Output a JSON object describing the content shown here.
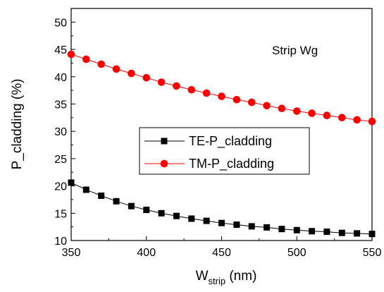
{
  "chart_data": {
    "type": "line",
    "xlabel_main": "W",
    "xlabel_sub": "strip",
    "xlabel_unit": " (nm)",
    "ylabel": "P_cladding (%)",
    "xlim": [
      350,
      550
    ],
    "ylim": [
      10,
      52.5
    ],
    "xticks": [
      350,
      400,
      450,
      500,
      550
    ],
    "yticks": [
      10,
      15,
      20,
      25,
      30,
      35,
      40,
      45,
      50
    ],
    "grid": false,
    "legend_position": "center",
    "annotation": "Strip Wg",
    "x": [
      350,
      360,
      370,
      380,
      390,
      400,
      410,
      420,
      430,
      440,
      450,
      460,
      470,
      480,
      490,
      500,
      510,
      520,
      530,
      540,
      550
    ],
    "series": [
      {
        "name": "TE-P_cladding",
        "color": "#000000",
        "marker": "square",
        "values": [
          20.6,
          19.3,
          18.2,
          17.2,
          16.3,
          15.6,
          15.0,
          14.5,
          14.0,
          13.6,
          13.2,
          12.9,
          12.6,
          12.4,
          12.1,
          11.9,
          11.7,
          11.6,
          11.4,
          11.3,
          11.2
        ]
      },
      {
        "name": "TM-P_cladding",
        "color": "#ff0000",
        "marker": "circle",
        "values": [
          44.1,
          43.2,
          42.3,
          41.4,
          40.6,
          39.8,
          39.0,
          38.3,
          37.6,
          37.0,
          36.4,
          35.8,
          35.3,
          34.7,
          34.2,
          33.7,
          33.3,
          32.9,
          32.5,
          32.1,
          31.8
        ]
      }
    ]
  }
}
